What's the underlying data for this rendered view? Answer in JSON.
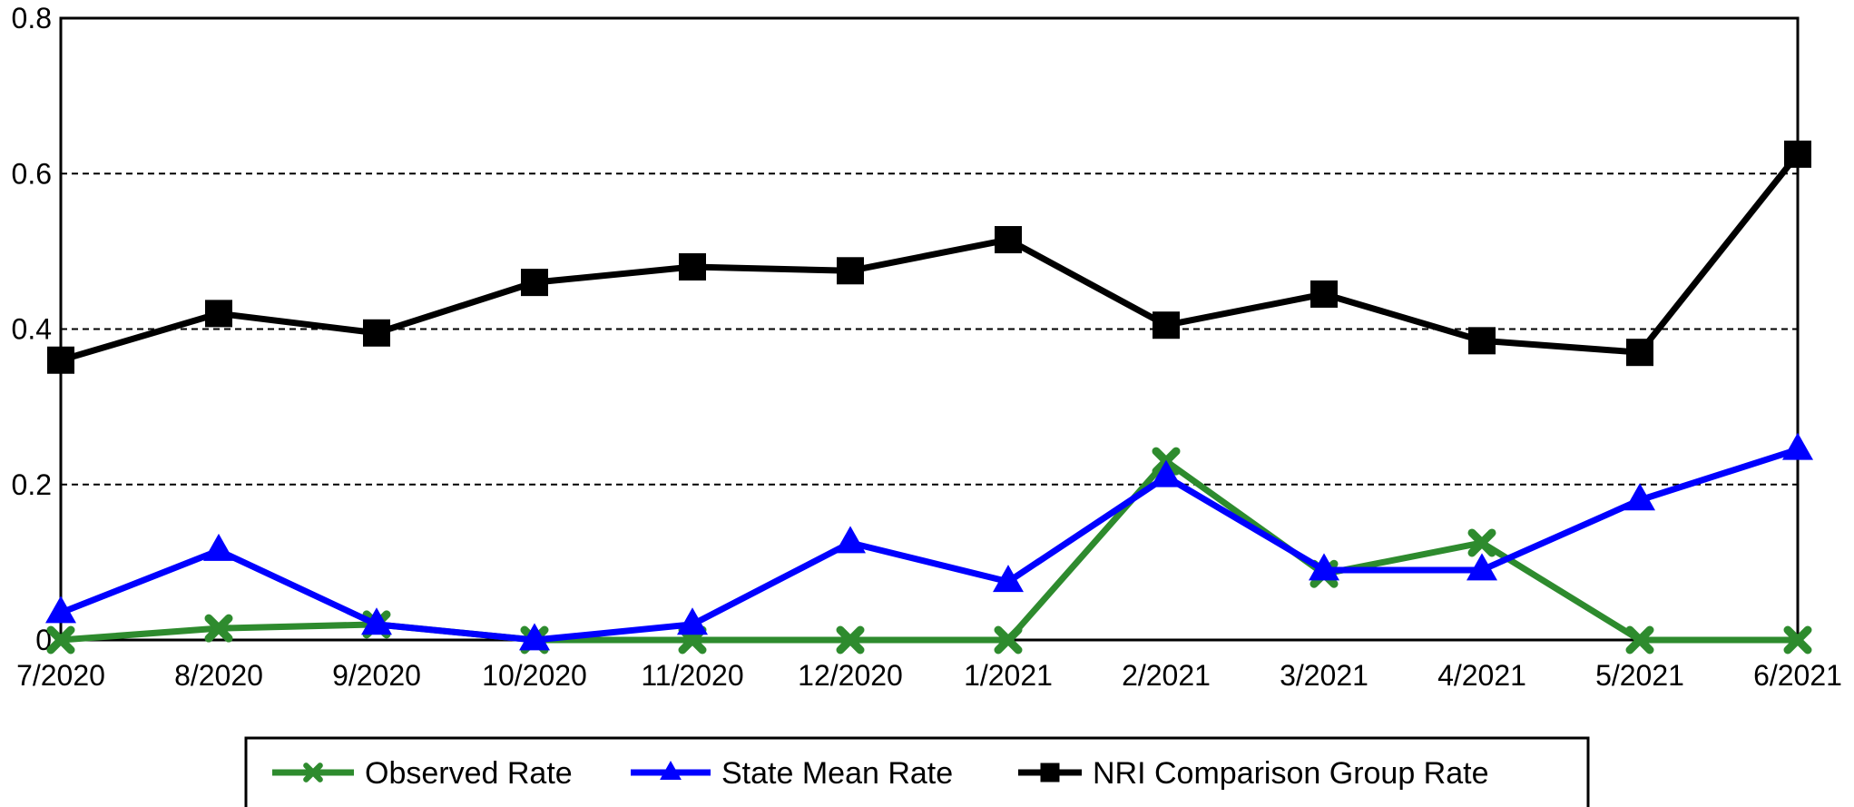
{
  "chart_data": {
    "type": "line",
    "title": "",
    "xlabel": "",
    "ylabel": "",
    "categories": [
      "7/2020",
      "8/2020",
      "9/2020",
      "10/2020",
      "11/2020",
      "12/2020",
      "1/2021",
      "2/2021",
      "3/2021",
      "4/2021",
      "5/2021",
      "6/2021"
    ],
    "ylim": [
      0,
      0.8
    ],
    "yticks": [
      {
        "value": 0,
        "label": "0"
      },
      {
        "value": 0.2,
        "label": "0.2"
      },
      {
        "value": 0.4,
        "label": "0.4"
      },
      {
        "value": 0.6,
        "label": "0.6"
      },
      {
        "value": 0.8,
        "label": "0.8"
      }
    ],
    "grid": "horizontal dashed",
    "legend_position": "bottom",
    "series": [
      {
        "name": "Observed Rate",
        "color": "#2e8b2e",
        "marker": "x",
        "values": [
          0,
          0.015,
          0.02,
          0,
          0,
          0,
          0,
          0.23,
          0.085,
          0.125,
          0,
          0
        ]
      },
      {
        "name": "State Mean Rate",
        "color": "#0000ff",
        "marker": "triangle",
        "values": [
          0.035,
          0.115,
          0.02,
          0,
          0.02,
          0.125,
          0.075,
          0.21,
          0.09,
          0.09,
          0.18,
          0.245
        ]
      },
      {
        "name": "NRI Comparison Group Rate",
        "color": "#000000",
        "marker": "square",
        "values": [
          0.36,
          0.42,
          0.395,
          0.46,
          0.48,
          0.475,
          0.515,
          0.405,
          0.445,
          0.385,
          0.37,
          0.625
        ]
      }
    ]
  }
}
